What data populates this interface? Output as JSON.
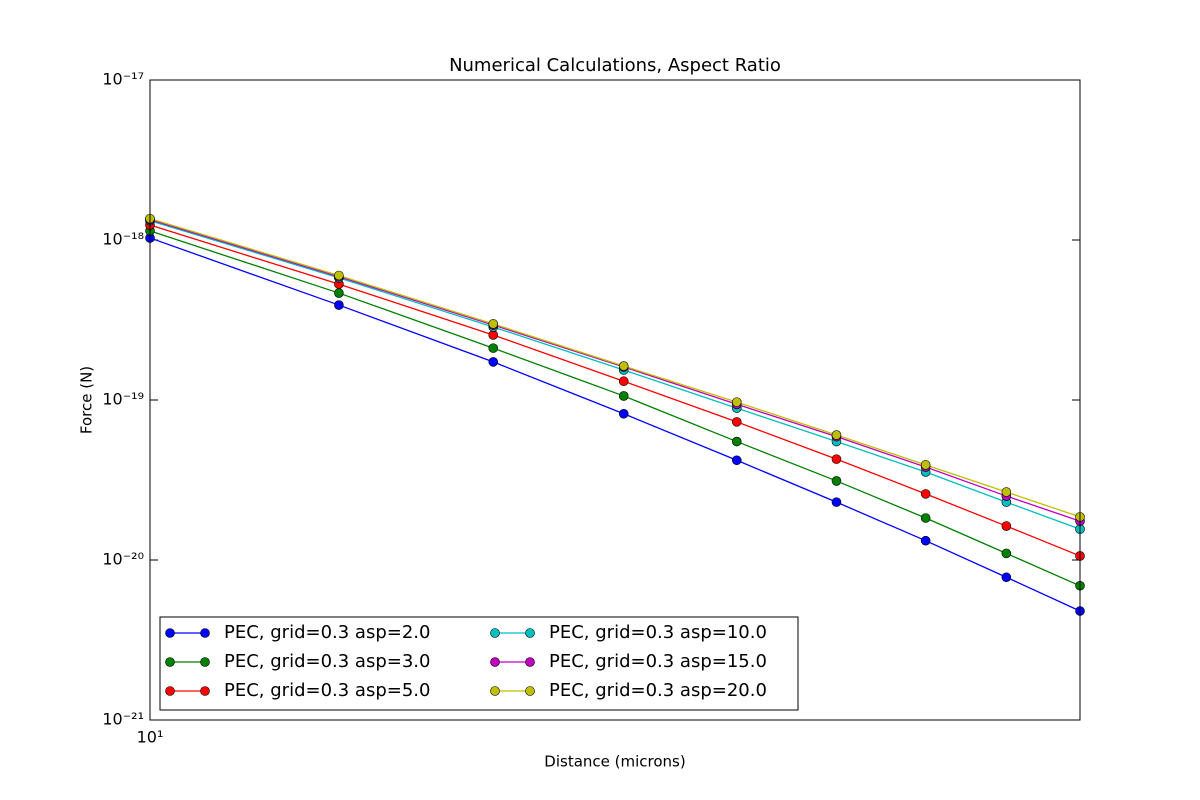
{
  "chart_data": {
    "type": "line",
    "title": "Numerical Calculations, Aspect Ratio",
    "xlabel": "Distance (microns)",
    "ylabel": "Force (N)",
    "xscale": "log",
    "yscale": "log",
    "x": [
      10,
      12.5,
      15,
      17.5,
      20,
      22.5,
      25,
      27.5,
      30
    ],
    "xlim": [
      10,
      30
    ],
    "xticks": [
      {
        "value": 10,
        "label": "10¹"
      }
    ],
    "ylim": [
      1e-21,
      1e-17
    ],
    "yticks": [
      {
        "value": 1e-21,
        "label": "10⁻²¹"
      },
      {
        "value": 1e-20,
        "label": "10⁻²⁰"
      },
      {
        "value": 1e-19,
        "label": "10⁻¹⁹"
      },
      {
        "value": 1e-18,
        "label": "10⁻¹⁸"
      },
      {
        "value": 1e-17,
        "label": "10⁻¹⁷"
      }
    ],
    "legend": "lower left",
    "series": [
      {
        "name": "PEC, grid=0.3 asp=2.0",
        "color": "#0000ff",
        "values": [
          1.03e-18,
          3.92e-19,
          1.73e-19,
          8.2e-20,
          4.2e-20,
          2.3e-20,
          1.32e-20,
          7.8e-21,
          4.8e-21
        ]
      },
      {
        "name": "PEC, grid=0.3 asp=3.0",
        "color": "#008000",
        "values": [
          1.14e-18,
          4.66e-19,
          2.11e-19,
          1.06e-19,
          5.5e-20,
          3.12e-20,
          1.83e-20,
          1.1e-20,
          6.9e-21
        ]
      },
      {
        "name": "PEC, grid=0.3 asp=5.0",
        "color": "#ff0000",
        "values": [
          1.24e-18,
          5.3e-19,
          2.55e-19,
          1.31e-19,
          7.3e-20,
          4.27e-20,
          2.59e-20,
          1.63e-20,
          1.06e-20
        ]
      },
      {
        "name": "PEC, grid=0.3 asp=10.0",
        "color": "#00bfbf",
        "values": [
          1.32e-18,
          5.8e-19,
          2.86e-19,
          1.54e-19,
          8.9e-20,
          5.5e-20,
          3.55e-20,
          2.3e-20,
          1.56e-20
        ]
      },
      {
        "name": "PEC, grid=0.3 asp=15.0",
        "color": "#bf00bf",
        "values": [
          1.34e-18,
          5.9e-19,
          2.94e-19,
          1.61e-19,
          9.4e-20,
          5.9e-20,
          3.81e-20,
          2.51e-20,
          1.75e-20
        ]
      },
      {
        "name": "PEC, grid=0.3 asp=20.0",
        "color": "#bfbf00",
        "values": [
          1.36e-18,
          6e-19,
          2.99e-19,
          1.63e-19,
          9.7e-20,
          6.04e-20,
          3.93e-20,
          2.66e-20,
          1.86e-20
        ]
      }
    ]
  }
}
